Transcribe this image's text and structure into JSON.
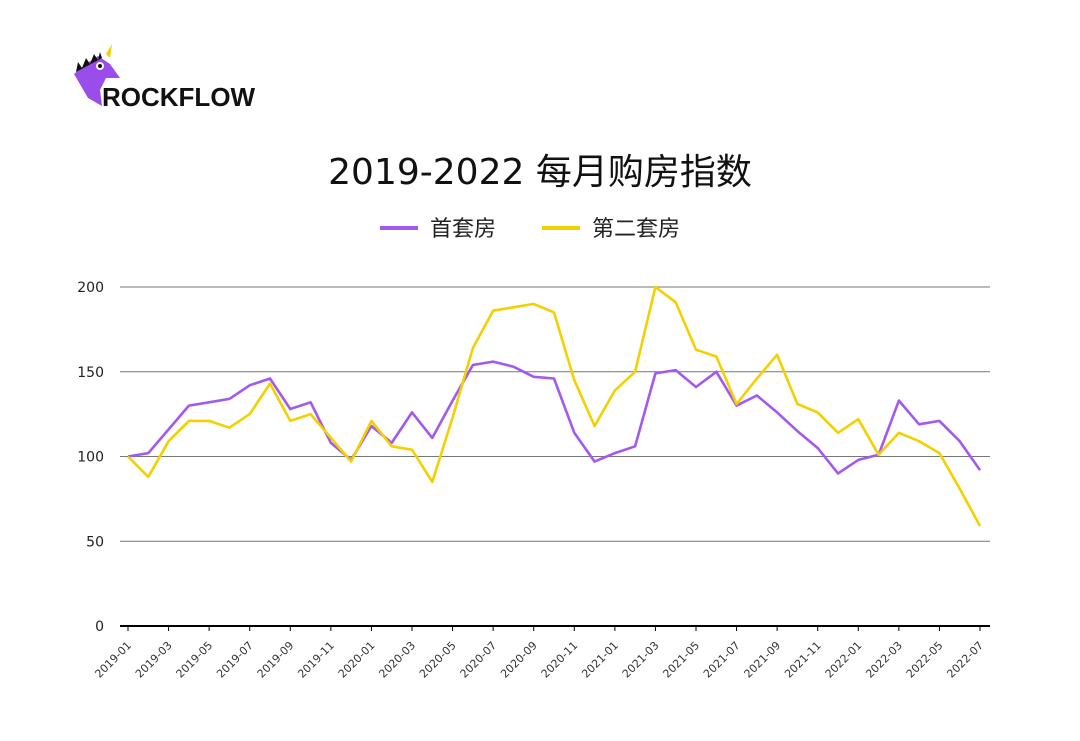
{
  "brand": {
    "name": "ROCKFLOW",
    "logo_icon": "unicorn-head-icon",
    "logo_color": "#9B4DEB"
  },
  "chart_data": {
    "type": "line",
    "title": "2019-2022 每月购房指数",
    "xlabel": "",
    "ylabel": "",
    "ylim": [
      0,
      200
    ],
    "yticks": [
      0,
      50,
      100,
      150,
      200
    ],
    "grid": true,
    "legend_position": "top-center",
    "x": [
      "2019-01",
      "2019-02",
      "2019-03",
      "2019-04",
      "2019-05",
      "2019-06",
      "2019-07",
      "2019-08",
      "2019-09",
      "2019-10",
      "2019-11",
      "2019-12",
      "2020-01",
      "2020-02",
      "2020-03",
      "2020-04",
      "2020-05",
      "2020-06",
      "2020-07",
      "2020-08",
      "2020-09",
      "2020-10",
      "2020-11",
      "2020-12",
      "2021-01",
      "2021-02",
      "2021-03",
      "2021-04",
      "2021-05",
      "2021-06",
      "2021-07",
      "2021-08",
      "2021-09",
      "2021-10",
      "2021-11",
      "2021-12",
      "2022-01",
      "2022-02",
      "2022-03",
      "2022-04",
      "2022-05",
      "2022-06",
      "2022-07"
    ],
    "x_tick_labels": [
      "2019-01",
      "2019-03",
      "2019-05",
      "2019-07",
      "2019-09",
      "2019-11",
      "2020-01",
      "2020-03",
      "2020-05",
      "2020-07",
      "2020-09",
      "2020-11",
      "2021-01",
      "2021-03",
      "2021-05",
      "2021-07",
      "2021-09",
      "2021-11",
      "2022-01",
      "2022-03",
      "2022-05",
      "2022-07"
    ],
    "series": [
      {
        "name": "首套房",
        "color": "#A259F0",
        "values": [
          100,
          102,
          116,
          130,
          132,
          134,
          142,
          146,
          128,
          132,
          108,
          98,
          118,
          108,
          126,
          111,
          133,
          154,
          156,
          153,
          147,
          146,
          114,
          97,
          102,
          106,
          149,
          151,
          141,
          150,
          130,
          136,
          126,
          115,
          105,
          90,
          98,
          101,
          133,
          119,
          121,
          109,
          92
        ]
      },
      {
        "name": "第二套房",
        "color": "#F5D000",
        "values": [
          100,
          88,
          109,
          121,
          121,
          117,
          125,
          143,
          121,
          125,
          111,
          97,
          121,
          106,
          104,
          85,
          123,
          164,
          186,
          188,
          190,
          185,
          145,
          118,
          139,
          150,
          200,
          191,
          163,
          159,
          131,
          146,
          160,
          131,
          126,
          114,
          122,
          101,
          114,
          109,
          102,
          81,
          59
        ]
      }
    ]
  }
}
